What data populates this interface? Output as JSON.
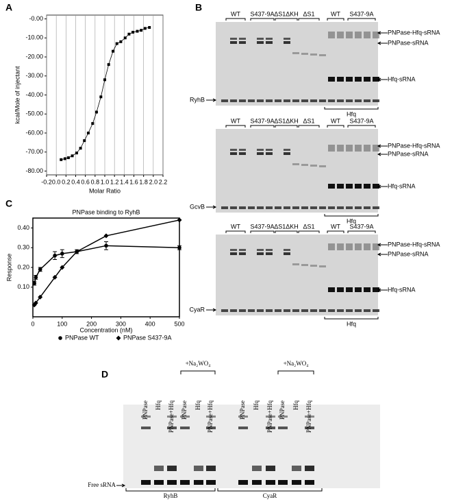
{
  "panel_letters": [
    "A",
    "B",
    "C",
    "D"
  ],
  "chart_data": [
    {
      "type": "line",
      "x_label": "Molar Ratio",
      "y_label": "kcal/Mole of injectant",
      "x": [
        0.1,
        0.18,
        0.25,
        0.33,
        0.42,
        0.5,
        0.58,
        0.66,
        0.75,
        0.83,
        0.92,
        1.0,
        1.08,
        1.17,
        1.25,
        1.33,
        1.42,
        1.5,
        1.58,
        1.67,
        1.75,
        1.83,
        1.92
      ],
      "series": [
        {
          "color": "#000000",
          "marker": "square",
          "values": [
            -74,
            -73.5,
            -73,
            -72,
            -70.5,
            -68,
            -64,
            -60,
            -55,
            -49,
            -41,
            -32,
            -24,
            -17,
            -13,
            -12,
            -10,
            -8,
            -7,
            -6.5,
            -6,
            -5,
            -4.5
          ]
        }
      ],
      "xlim": [
        -0.2,
        2.2
      ],
      "xticks": [
        -0.2,
        {
          "value": 0,
          "label": "0.0"
        },
        0.2,
        0.4,
        0.6,
        0.8,
        {
          "value": 1,
          "label": "1.0"
        },
        1.2,
        1.4,
        1.6,
        1.8,
        {
          "value": 2,
          "label": "2.0"
        },
        2.2
      ],
      "ylim": [
        -82,
        2
      ],
      "yticks": [
        {
          "value": 0,
          "label": "-0.00"
        },
        {
          "value": -10,
          "label": "-10.00"
        },
        {
          "value": -20,
          "label": "-20.00"
        },
        {
          "value": -30,
          "label": "-30.00"
        },
        {
          "value": -40,
          "label": "-40.00"
        },
        {
          "value": -50,
          "label": "-50.00"
        },
        {
          "value": -60,
          "label": "-60.00"
        },
        {
          "value": -70,
          "label": "-70.00"
        },
        {
          "value": -80,
          "label": "-80.00"
        }
      ],
      "grid": "x"
    },
    {
      "type": "scatter",
      "title": "PNPase binding to RyhB",
      "x_label": "Concentration (nM)",
      "y_label": "Response",
      "x": [
        5,
        10,
        25,
        75,
        100,
        150,
        250,
        500
      ],
      "series": [
        {
          "name": "PNPase WT",
          "color": "#000000",
          "marker": "circle",
          "values": [
            0.12,
            0.15,
            0.19,
            0.26,
            0.27,
            0.28,
            0.31,
            0.3
          ],
          "errors": [
            0.01,
            0.01,
            0.01,
            0.02,
            0.02,
            0.01,
            0.02,
            0.01
          ]
        },
        {
          "name": "PNPase S437-9A",
          "color": "#000000",
          "marker": "diamond",
          "values": [
            0.01,
            0.02,
            0.05,
            0.15,
            0.2,
            0.28,
            0.36,
            0.44
          ]
        }
      ],
      "xlim": [
        0,
        500
      ],
      "xticks": [
        0,
        100,
        200,
        300,
        400,
        500
      ],
      "ylim": [
        -0.05,
        0.45
      ],
      "yticks": [
        {
          "value": 0.1,
          "label": "0.10"
        },
        {
          "value": 0.2,
          "label": "0.20"
        },
        {
          "value": 0.3,
          "label": "0.30"
        },
        {
          "value": 0.4,
          "label": "0.40"
        }
      ],
      "grid": false
    }
  ],
  "gel_b": {
    "lane_groups": [
      "WT",
      "S437-9A",
      "ΔS1ΔKH",
      "ΔS1",
      "WT",
      "S437-9A"
    ],
    "band_labels": [
      "PNPase-Hfq-sRNA",
      "PNPase-sRNA",
      "Hfq-sRNA"
    ],
    "rnas": [
      "RyhB",
      "GcvB",
      "CyaR"
    ],
    "bracket": "Hfq"
  },
  "gel_d": {
    "lanes": [
      "PNPase",
      "Hfq",
      "PNPase+Hfq",
      "PNPase",
      "Hfq",
      "PNPase+Hfq",
      "PNPase",
      "Hfq",
      "PNPase+Hfq",
      "PNPase",
      "Hfq",
      "PNPase+Hfq"
    ],
    "treatment": "+Na₂WO₄",
    "free_label": "Free sRNA",
    "rnas": [
      "RyhB",
      "CyaR"
    ]
  }
}
